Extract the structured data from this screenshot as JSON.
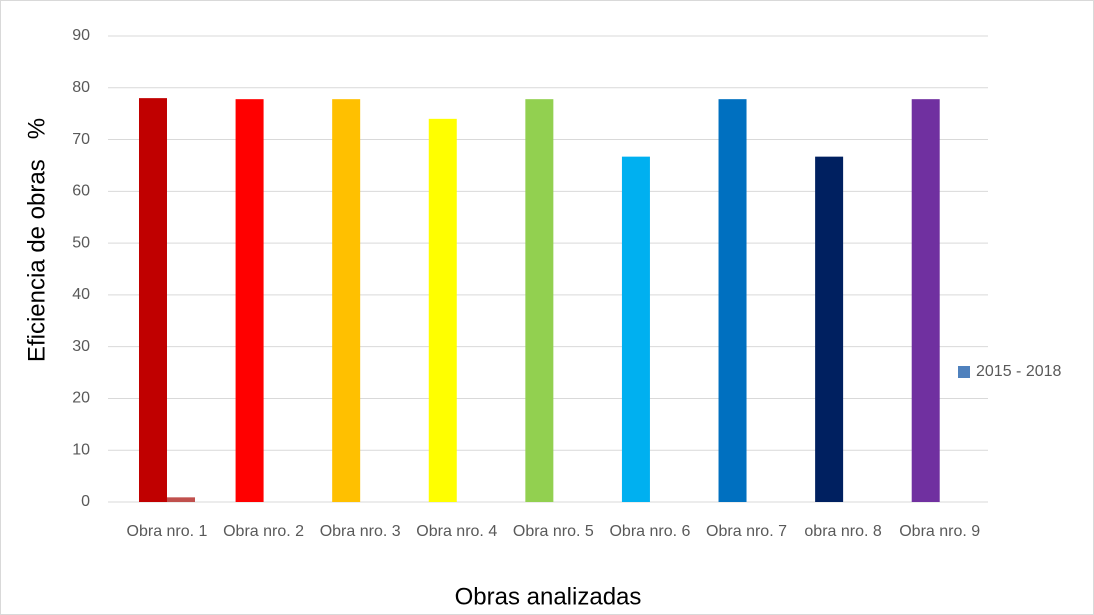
{
  "chart_data": {
    "type": "bar",
    "x_label": "Obras analizadas",
    "y_label": "Eficiencia de obras   %",
    "categories": [
      "Obra nro. 1",
      "Obra nro. 2",
      "Obra nro. 3",
      "Obra nro. 4",
      "Obra nro. 5",
      "Obra nro. 6",
      "Obra nro. 7",
      "obra nro. 8",
      "Obra nro. 9"
    ],
    "series": [
      {
        "name": "2015 - 2018",
        "color": "#4f81bd",
        "colors": [
          "#c00000",
          "#ff0000",
          "#ffc000",
          "#ffff00",
          "#92d050",
          "#00b0f0",
          "#0070c0",
          "#002060",
          "#7030a0"
        ],
        "values": [
          78,
          77.8,
          77.8,
          74,
          77.8,
          66.7,
          77.8,
          66.7,
          77.8
        ]
      },
      {
        "color": "#c0504d",
        "values": [
          0.9,
          null,
          null,
          null,
          null,
          null,
          null,
          null,
          null
        ]
      }
    ],
    "ylim": [
      0,
      90
    ],
    "yticks": [
      0,
      10,
      20,
      30,
      40,
      50,
      60,
      70,
      80,
      90
    ],
    "grid": true,
    "legend": "right"
  }
}
